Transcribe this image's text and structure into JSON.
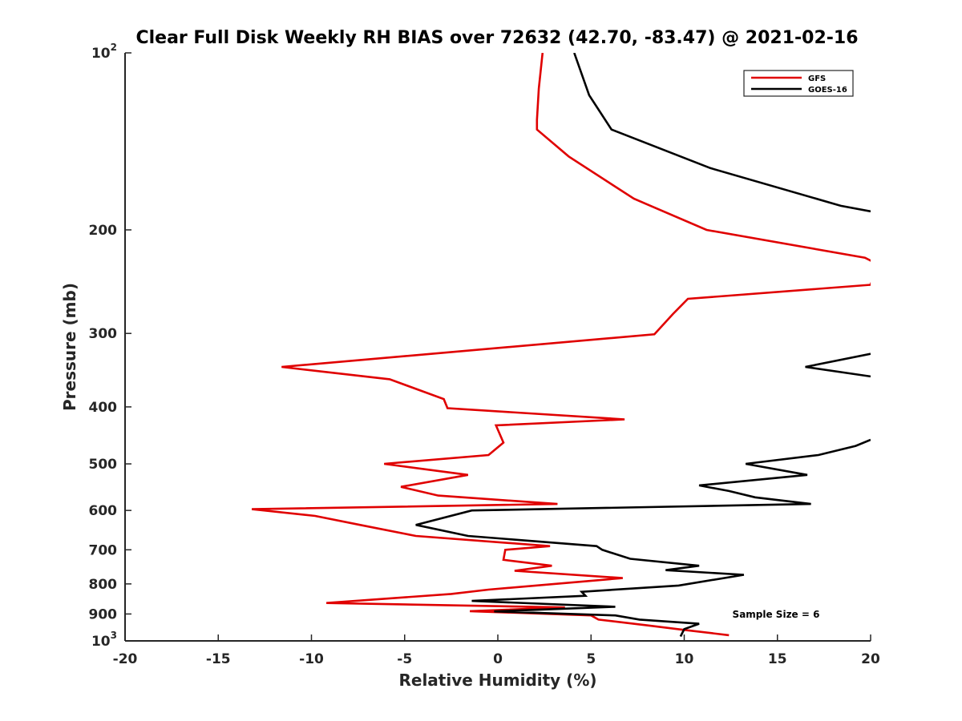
{
  "chart_data": {
    "type": "line",
    "title": "Clear Full Disk Weekly RH BIAS over 72632 (42.70, -83.47) @ 2021-02-16",
    "xlabel": "Relative Humidity (%)",
    "ylabel": "Pressure (mb)",
    "xlim": [
      -20,
      20
    ],
    "ylim": [
      100,
      1000
    ],
    "y_scale": "log",
    "y_reversed": true,
    "grid": false,
    "legend_position": "top-right",
    "x_ticks": [
      -20,
      -15,
      -10,
      -5,
      0,
      5,
      10,
      15,
      20
    ],
    "x_tick_labels": [
      "-20",
      "-15",
      "-10",
      "-5",
      "0",
      "5",
      "10",
      "15",
      "20"
    ],
    "y_ticks": [
      100,
      200,
      300,
      400,
      500,
      600,
      700,
      800,
      900,
      1000
    ],
    "y_tick_labels": [
      {
        "base": "10",
        "exp": "2"
      },
      {
        "base": "200",
        "exp": ""
      },
      {
        "base": "300",
        "exp": ""
      },
      {
        "base": "400",
        "exp": ""
      },
      {
        "base": "500",
        "exp": ""
      },
      {
        "base": "600",
        "exp": ""
      },
      {
        "base": "700",
        "exp": ""
      },
      {
        "base": "800",
        "exp": ""
      },
      {
        "base": "900",
        "exp": ""
      },
      {
        "base": "10",
        "exp": "3"
      }
    ],
    "annotation": "Sample Size = 6",
    "series": [
      {
        "name": "GFS",
        "color": "#e00000",
        "points": [
          [
            2.4,
            100
          ],
          [
            2.2,
            115
          ],
          [
            2.1,
            130
          ],
          [
            2.1,
            135
          ],
          [
            3.8,
            150
          ],
          [
            7.3,
            177
          ],
          [
            11.2,
            200
          ],
          [
            19.7,
            223
          ],
          [
            20.4,
            229
          ],
          [
            20.0,
            248
          ],
          [
            10.2,
            262
          ],
          [
            9.4,
            278
          ],
          [
            8.4,
            301
          ],
          [
            -11.6,
            342
          ],
          [
            -5.8,
            359
          ],
          [
            -2.9,
            388
          ],
          [
            -2.7,
            402
          ],
          [
            6.8,
            420
          ],
          [
            -0.1,
            430
          ],
          [
            0.3,
            460
          ],
          [
            -0.5,
            483
          ],
          [
            -6.1,
            500
          ],
          [
            -1.6,
            522
          ],
          [
            -5.2,
            547
          ],
          [
            -3.2,
            566
          ],
          [
            3.2,
            585
          ],
          [
            -13.2,
            597
          ],
          [
            -9.8,
            613
          ],
          [
            -7.4,
            635
          ],
          [
            -4.4,
            663
          ],
          [
            2.8,
            690
          ],
          [
            0.4,
            700
          ],
          [
            0.3,
            728
          ],
          [
            2.9,
            745
          ],
          [
            0.9,
            760
          ],
          [
            6.7,
            782
          ],
          [
            -0.5,
            818
          ],
          [
            -2.5,
            832
          ],
          [
            -9.2,
            862
          ],
          [
            3.6,
            877
          ],
          [
            -1.5,
            890
          ],
          [
            5.0,
            905
          ],
          [
            5.4,
            920
          ],
          [
            8.0,
            941
          ],
          [
            10.0,
            958
          ],
          [
            12.4,
            978
          ]
        ]
      },
      {
        "name": "GOES-16",
        "color": "#000000",
        "points": [
          [
            4.1,
            100
          ],
          [
            4.9,
            118
          ],
          [
            6.1,
            135
          ],
          [
            11.4,
            157
          ],
          [
            18.4,
            182
          ],
          [
            20.0,
            186
          ],
          null,
          [
            20.0,
            325
          ],
          [
            16.5,
            342
          ],
          [
            20.0,
            355
          ],
          null,
          [
            20.0,
            455
          ],
          [
            19.2,
            466
          ],
          [
            17.2,
            483
          ],
          [
            13.3,
            500
          ],
          [
            16.6,
            522
          ],
          [
            10.8,
            544
          ],
          [
            12.4,
            556
          ],
          [
            13.8,
            570
          ],
          [
            16.8,
            585
          ],
          [
            -1.4,
            600
          ],
          [
            -4.4,
            635
          ],
          [
            -1.6,
            663
          ],
          [
            5.3,
            690
          ],
          [
            5.6,
            700
          ],
          [
            7.1,
            725
          ],
          [
            10.8,
            745
          ],
          [
            9.0,
            758
          ],
          [
            13.2,
            772
          ],
          [
            9.7,
            805
          ],
          [
            4.5,
            825
          ],
          [
            4.7,
            838
          ],
          [
            -1.4,
            855
          ],
          [
            6.3,
            875
          ],
          [
            -0.2,
            891
          ],
          [
            6.3,
            905
          ],
          [
            7.6,
            920
          ],
          [
            10.8,
            935
          ],
          [
            10.0,
            955
          ],
          [
            9.8,
            983
          ]
        ]
      }
    ]
  }
}
